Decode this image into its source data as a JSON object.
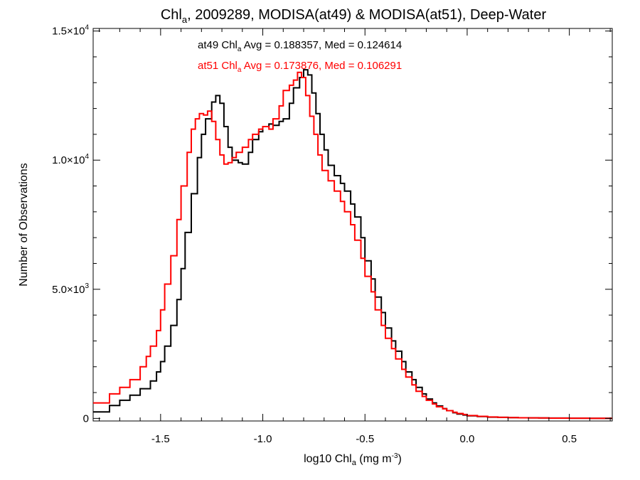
{
  "chart_data": {
    "type": "line",
    "step": true,
    "title": {
      "prefix": "Chl",
      "sub": "a",
      "rest": ", 2009289, MODISA(at49) & MODISA(at51), Deep-Water"
    },
    "xlabel": {
      "prefix": "log10 Chl",
      "sub": "a",
      "mid": " (mg m",
      "sup": "-3",
      "suffix": ")"
    },
    "ylabel": "Number of Observations",
    "xlim": [
      -1.83,
      0.71
    ],
    "ylim": [
      -100,
      15100
    ],
    "x_ticks": [
      {
        "value": -1.5,
        "label": "-1.5"
      },
      {
        "value": -1.0,
        "label": "-1.0"
      },
      {
        "value": -0.5,
        "label": "-0.5"
      },
      {
        "value": 0.0,
        "label": "0.0"
      },
      {
        "value": 0.5,
        "label": "0.5"
      }
    ],
    "y_ticks": [
      {
        "value": 0,
        "mant": "0",
        "exp": ""
      },
      {
        "value": 5000,
        "mant": "5.0×10",
        "exp": "3"
      },
      {
        "value": 10000,
        "mant": "1.0×10",
        "exp": "4"
      },
      {
        "value": 15000,
        "mant": "1.5×10",
        "exp": "4"
      }
    ],
    "grid": false,
    "annotations": [
      {
        "id": "at49",
        "color": "#000000",
        "pre": "at49 Chl",
        "sub": "a",
        "post": " Avg = 0.188357, Med = 0.124614"
      },
      {
        "id": "at51",
        "color": "#ff0000",
        "pre": "at51 Chl",
        "sub": "a",
        "post": " Avg = 0.173876, Med = 0.106291"
      }
    ],
    "series": [
      {
        "id": "at49",
        "color": "#000000",
        "x": [
          -1.83,
          -1.75,
          -1.7,
          -1.65,
          -1.6,
          -1.55,
          -1.52,
          -1.5,
          -1.48,
          -1.45,
          -1.42,
          -1.4,
          -1.38,
          -1.35,
          -1.32,
          -1.3,
          -1.28,
          -1.25,
          -1.23,
          -1.21,
          -1.19,
          -1.17,
          -1.15,
          -1.12,
          -1.1,
          -1.07,
          -1.05,
          -1.02,
          -1.0,
          -0.97,
          -0.95,
          -0.92,
          -0.9,
          -0.87,
          -0.85,
          -0.82,
          -0.8,
          -0.78,
          -0.76,
          -0.74,
          -0.72,
          -0.7,
          -0.68,
          -0.65,
          -0.62,
          -0.6,
          -0.57,
          -0.55,
          -0.52,
          -0.5,
          -0.47,
          -0.45,
          -0.42,
          -0.4,
          -0.37,
          -0.35,
          -0.32,
          -0.3,
          -0.27,
          -0.25,
          -0.22,
          -0.2,
          -0.17,
          -0.15,
          -0.12,
          -0.1,
          -0.07,
          -0.05,
          -0.02,
          0.0,
          0.05,
          0.1,
          0.15,
          0.2,
          0.25,
          0.3,
          0.35,
          0.4,
          0.5,
          0.6,
          0.7
        ],
        "y": [
          250,
          500,
          700,
          900,
          1150,
          1450,
          1800,
          2200,
          2800,
          3600,
          4600,
          5800,
          7200,
          8700,
          10100,
          11000,
          11600,
          12250,
          12500,
          12200,
          11300,
          10500,
          10000,
          9900,
          9850,
          10300,
          10800,
          11100,
          11300,
          11400,
          11350,
          11500,
          11600,
          12200,
          12800,
          13200,
          13500,
          13300,
          12600,
          11800,
          11000,
          10400,
          9800,
          9400,
          9100,
          8800,
          8300,
          7800,
          7000,
          6100,
          5400,
          4700,
          4100,
          3500,
          3000,
          2600,
          2200,
          1800,
          1500,
          1200,
          950,
          750,
          600,
          480,
          380,
          300,
          220,
          170,
          130,
          100,
          70,
          50,
          40,
          30,
          25,
          20,
          15,
          12,
          8,
          5,
          3
        ]
      },
      {
        "id": "at51",
        "color": "#ff0000",
        "x": [
          -1.83,
          -1.75,
          -1.7,
          -1.65,
          -1.6,
          -1.57,
          -1.55,
          -1.52,
          -1.5,
          -1.48,
          -1.45,
          -1.42,
          -1.4,
          -1.37,
          -1.35,
          -1.33,
          -1.31,
          -1.29,
          -1.27,
          -1.25,
          -1.23,
          -1.21,
          -1.19,
          -1.17,
          -1.15,
          -1.13,
          -1.1,
          -1.07,
          -1.05,
          -1.02,
          -1.0,
          -0.97,
          -0.95,
          -0.92,
          -0.9,
          -0.87,
          -0.85,
          -0.83,
          -0.81,
          -0.79,
          -0.77,
          -0.75,
          -0.73,
          -0.71,
          -0.68,
          -0.65,
          -0.62,
          -0.6,
          -0.57,
          -0.55,
          -0.52,
          -0.5,
          -0.47,
          -0.45,
          -0.42,
          -0.4,
          -0.37,
          -0.35,
          -0.32,
          -0.3,
          -0.27,
          -0.25,
          -0.22,
          -0.2,
          -0.17,
          -0.15,
          -0.12,
          -0.1,
          -0.07,
          -0.05,
          -0.02,
          0.0,
          0.05,
          0.1,
          0.15,
          0.2,
          0.25,
          0.3,
          0.35,
          0.4,
          0.5,
          0.6,
          0.7
        ],
        "y": [
          600,
          950,
          1200,
          1500,
          2000,
          2400,
          2800,
          3400,
          4200,
          5200,
          6300,
          7700,
          9000,
          10300,
          11200,
          11600,
          11800,
          11750,
          11900,
          11500,
          10800,
          10200,
          9850,
          9900,
          10100,
          10300,
          10500,
          10800,
          11000,
          11200,
          11300,
          11200,
          11600,
          12100,
          12700,
          12900,
          13100,
          13400,
          13200,
          12500,
          11700,
          11000,
          10200,
          9600,
          9200,
          8800,
          8400,
          8000,
          7500,
          6900,
          6200,
          5500,
          4900,
          4200,
          3600,
          3100,
          2700,
          2300,
          1900,
          1600,
          1300,
          1050,
          850,
          700,
          560,
          450,
          370,
          300,
          240,
          190,
          150,
          110,
          80,
          55,
          40,
          30,
          25,
          20,
          15,
          10,
          8,
          5,
          3
        ]
      }
    ]
  }
}
